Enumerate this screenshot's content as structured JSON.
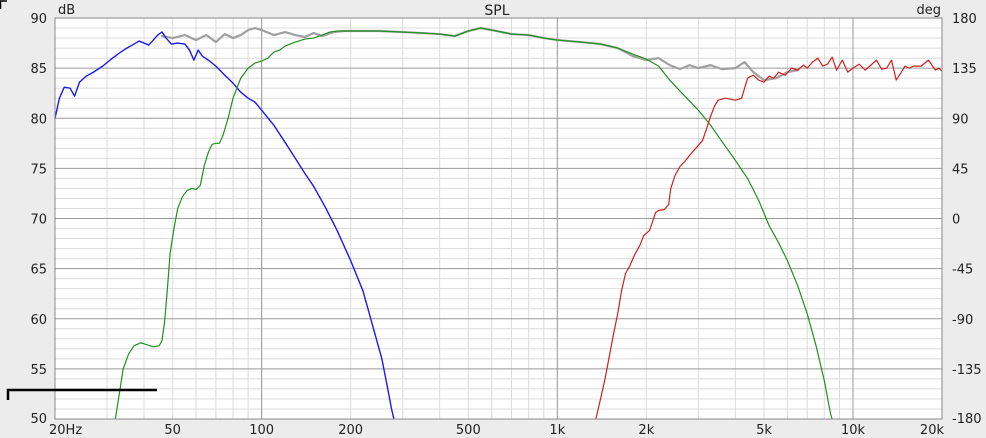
{
  "chart_data": {
    "type": "line",
    "title": "SPL",
    "ylabel": "dB",
    "ylabel_right": "deg",
    "xscale": "log",
    "xlim": [
      20,
      20000
    ],
    "ylim": [
      50,
      90
    ],
    "ylim_right": [
      -180,
      180
    ],
    "grid": true,
    "x_ticks": [
      {
        "value": 20,
        "label": "20Hz"
      },
      {
        "value": 50,
        "label": "50"
      },
      {
        "value": 100,
        "label": "100"
      },
      {
        "value": 200,
        "label": "200"
      },
      {
        "value": 500,
        "label": "500"
      },
      {
        "value": 1000,
        "label": "1k"
      },
      {
        "value": 2000,
        "label": "2k"
      },
      {
        "value": 5000,
        "label": "5k"
      },
      {
        "value": 10000,
        "label": "10k"
      },
      {
        "value": 20000,
        "label": "20k"
      }
    ],
    "y_ticks": [
      "50",
      "55",
      "60",
      "65",
      "70",
      "75",
      "80",
      "85",
      "90"
    ],
    "y_ticks_right": [
      "-180",
      "-135",
      "-90",
      "-45",
      "0",
      "45",
      "90",
      "135",
      "180"
    ],
    "colors": {
      "background": "#ffffff",
      "grid_major": "#9a9a9a",
      "grid_minor": "#dcdcdc",
      "frame": "#ececec"
    },
    "series": [
      {
        "color": "#a0a0a0",
        "stroke_width": 2.2,
        "points": [
          [
            46,
            88.2
          ],
          [
            50,
            88.0
          ],
          [
            55,
            88.3
          ],
          [
            60,
            87.8
          ],
          [
            65,
            88.3
          ],
          [
            70,
            87.6
          ],
          [
            75,
            88.4
          ],
          [
            80,
            88.0
          ],
          [
            85,
            88.3
          ],
          [
            90,
            88.8
          ],
          [
            95,
            89.0
          ],
          [
            100,
            88.8
          ],
          [
            110,
            88.3
          ],
          [
            120,
            88.6
          ],
          [
            130,
            88.3
          ],
          [
            140,
            88.1
          ],
          [
            150,
            88.5
          ],
          [
            160,
            88.2
          ],
          [
            175,
            88.6
          ],
          [
            190,
            88.7
          ],
          [
            200,
            88.7
          ],
          [
            250,
            88.7
          ],
          [
            300,
            88.6
          ],
          [
            350,
            88.5
          ],
          [
            400,
            88.4
          ],
          [
            450,
            88.2
          ],
          [
            500,
            88.7
          ],
          [
            550,
            89.0
          ],
          [
            600,
            88.8
          ],
          [
            700,
            88.4
          ],
          [
            800,
            88.3
          ],
          [
            900,
            88.0
          ],
          [
            1000,
            87.8
          ],
          [
            1200,
            87.6
          ],
          [
            1400,
            87.4
          ],
          [
            1600,
            87.0
          ],
          [
            1800,
            86.2
          ],
          [
            2000,
            85.8
          ],
          [
            2200,
            86.0
          ],
          [
            2400,
            85.3
          ],
          [
            2600,
            84.9
          ],
          [
            2800,
            85.3
          ],
          [
            3000,
            85.0
          ],
          [
            3300,
            85.3
          ],
          [
            3600,
            84.9
          ],
          [
            4000,
            85.0
          ],
          [
            4300,
            85.6
          ],
          [
            4600,
            84.6
          ],
          [
            5000,
            83.8
          ],
          [
            5500,
            84.0
          ],
          [
            6000,
            84.6
          ],
          [
            6500,
            84.8
          ]
        ]
      },
      {
        "color": "#1a1af0",
        "stroke_width": 1.4,
        "points": [
          [
            20,
            80.0
          ],
          [
            20.7,
            82.0
          ],
          [
            21.5,
            83.1
          ],
          [
            22.5,
            83.0
          ],
          [
            23.3,
            82.2
          ],
          [
            24.2,
            83.6
          ],
          [
            25.5,
            84.2
          ],
          [
            27,
            84.6
          ],
          [
            29,
            85.2
          ],
          [
            31,
            85.9
          ],
          [
            33,
            86.5
          ],
          [
            35,
            87.0
          ],
          [
            37,
            87.4
          ],
          [
            38.5,
            87.7
          ],
          [
            40,
            87.5
          ],
          [
            41.5,
            87.3
          ],
          [
            43,
            87.8
          ],
          [
            44.5,
            88.3
          ],
          [
            46,
            88.6
          ],
          [
            47.5,
            88.0
          ],
          [
            49.5,
            87.4
          ],
          [
            52,
            87.5
          ],
          [
            55,
            87.4
          ],
          [
            57,
            86.8
          ],
          [
            59,
            85.8
          ],
          [
            61,
            86.8
          ],
          [
            63,
            86.2
          ],
          [
            66,
            85.8
          ],
          [
            70,
            85.2
          ],
          [
            75,
            84.3
          ],
          [
            80,
            83.5
          ],
          [
            85,
            82.6
          ],
          [
            90,
            82.0
          ],
          [
            95,
            81.6
          ],
          [
            100,
            80.8
          ],
          [
            110,
            79.3
          ],
          [
            120,
            77.6
          ],
          [
            130,
            76.0
          ],
          [
            140,
            74.5
          ],
          [
            150,
            73.2
          ],
          [
            165,
            71.0
          ],
          [
            180,
            68.8
          ],
          [
            200,
            65.8
          ],
          [
            220,
            62.8
          ],
          [
            240,
            58.8
          ],
          [
            255,
            56.0
          ],
          [
            265,
            53.5
          ],
          [
            275,
            51.0
          ],
          [
            280,
            50.0
          ]
        ]
      },
      {
        "color": "#209020",
        "stroke_width": 1.2,
        "points": [
          [
            32,
            50.0
          ],
          [
            33,
            52.5
          ],
          [
            34,
            55.0
          ],
          [
            35.5,
            56.5
          ],
          [
            37,
            57.3
          ],
          [
            39,
            57.6
          ],
          [
            41,
            57.4
          ],
          [
            43,
            57.2
          ],
          [
            45,
            57.3
          ],
          [
            46,
            57.8
          ],
          [
            47,
            59.8
          ],
          [
            48,
            63.0
          ],
          [
            49,
            66.5
          ],
          [
            50.5,
            69.0
          ],
          [
            52,
            71.0
          ],
          [
            54,
            72.2
          ],
          [
            56,
            72.8
          ],
          [
            58,
            73.0
          ],
          [
            60,
            72.9
          ],
          [
            62,
            73.3
          ],
          [
            64,
            75.3
          ],
          [
            66,
            76.6
          ],
          [
            68,
            77.4
          ],
          [
            70,
            77.5
          ],
          [
            72,
            77.5
          ],
          [
            74,
            78.3
          ],
          [
            77,
            80.0
          ],
          [
            80,
            82.0
          ],
          [
            85,
            84.0
          ],
          [
            90,
            85.0
          ],
          [
            95,
            85.5
          ],
          [
            100,
            85.7
          ],
          [
            105,
            86.0
          ],
          [
            110,
            86.6
          ],
          [
            115,
            86.8
          ],
          [
            120,
            87.2
          ],
          [
            130,
            87.6
          ],
          [
            140,
            87.9
          ],
          [
            150,
            88.0
          ],
          [
            160,
            88.3
          ],
          [
            170,
            88.6
          ],
          [
            180,
            88.7
          ],
          [
            200,
            88.7
          ],
          [
            250,
            88.7
          ],
          [
            300,
            88.6
          ],
          [
            350,
            88.5
          ],
          [
            400,
            88.4
          ],
          [
            450,
            88.2
          ],
          [
            500,
            88.7
          ],
          [
            550,
            89.0
          ],
          [
            600,
            88.8
          ],
          [
            700,
            88.4
          ],
          [
            800,
            88.3
          ],
          [
            900,
            88.0
          ],
          [
            1000,
            87.8
          ],
          [
            1200,
            87.6
          ],
          [
            1400,
            87.4
          ],
          [
            1600,
            87.0
          ],
          [
            1800,
            86.4
          ],
          [
            2000,
            85.9
          ],
          [
            2200,
            85.2
          ],
          [
            2400,
            83.8
          ],
          [
            2700,
            82.2
          ],
          [
            3000,
            80.8
          ],
          [
            3300,
            79.3
          ],
          [
            3600,
            77.7
          ],
          [
            4000,
            75.8
          ],
          [
            4400,
            74.0
          ],
          [
            4800,
            71.8
          ],
          [
            5200,
            69.3
          ],
          [
            5600,
            67.6
          ],
          [
            6000,
            65.8
          ],
          [
            6500,
            63.3
          ],
          [
            7000,
            60.5
          ],
          [
            7500,
            57.3
          ],
          [
            8000,
            53.8
          ],
          [
            8400,
            50.5
          ],
          [
            8500,
            50.0
          ]
        ]
      },
      {
        "color": "#d02020",
        "stroke_width": 1.2,
        "points": [
          [
            1350,
            50.0
          ],
          [
            1400,
            52.0
          ],
          [
            1450,
            54.0
          ],
          [
            1500,
            56.3
          ],
          [
            1550,
            58.5
          ],
          [
            1600,
            60.5
          ],
          [
            1650,
            62.8
          ],
          [
            1700,
            64.5
          ],
          [
            1760,
            65.3
          ],
          [
            1820,
            66.3
          ],
          [
            1900,
            67.3
          ],
          [
            1960,
            68.3
          ],
          [
            2050,
            68.8
          ],
          [
            2100,
            69.7
          ],
          [
            2150,
            70.6
          ],
          [
            2200,
            70.8
          ],
          [
            2300,
            70.9
          ],
          [
            2380,
            71.4
          ],
          [
            2420,
            73.0
          ],
          [
            2500,
            74.3
          ],
          [
            2600,
            75.2
          ],
          [
            2700,
            75.7
          ],
          [
            2800,
            76.3
          ],
          [
            2900,
            76.8
          ],
          [
            3000,
            77.3
          ],
          [
            3100,
            77.8
          ],
          [
            3200,
            79.0
          ],
          [
            3300,
            80.2
          ],
          [
            3400,
            81.2
          ],
          [
            3500,
            81.8
          ],
          [
            3700,
            82.0
          ],
          [
            4000,
            81.8
          ],
          [
            4200,
            82.0
          ],
          [
            4400,
            84.0
          ],
          [
            4600,
            84.3
          ],
          [
            4800,
            83.8
          ],
          [
            5000,
            83.6
          ],
          [
            5200,
            84.2
          ],
          [
            5400,
            84.0
          ],
          [
            5600,
            84.6
          ],
          [
            5900,
            84.3
          ],
          [
            6200,
            85.0
          ],
          [
            6500,
            84.8
          ],
          [
            6800,
            85.3
          ],
          [
            7000,
            85.0
          ],
          [
            7300,
            85.6
          ],
          [
            7600,
            86.0
          ],
          [
            7900,
            85.2
          ],
          [
            8200,
            85.4
          ],
          [
            8500,
            86.1
          ],
          [
            8800,
            84.8
          ],
          [
            9200,
            85.8
          ],
          [
            9600,
            84.6
          ],
          [
            10000,
            85.0
          ],
          [
            10500,
            85.4
          ],
          [
            11000,
            84.8
          ],
          [
            11500,
            85.3
          ],
          [
            12000,
            85.8
          ],
          [
            12500,
            84.9
          ],
          [
            13000,
            85.0
          ],
          [
            13500,
            85.8
          ],
          [
            14000,
            83.8
          ],
          [
            14500,
            84.5
          ],
          [
            15000,
            85.2
          ],
          [
            15500,
            85.0
          ],
          [
            16000,
            85.2
          ],
          [
            17000,
            85.2
          ],
          [
            18000,
            85.8
          ],
          [
            19000,
            84.8
          ],
          [
            19500,
            85.0
          ],
          [
            20000,
            84.7
          ]
        ]
      }
    ]
  }
}
